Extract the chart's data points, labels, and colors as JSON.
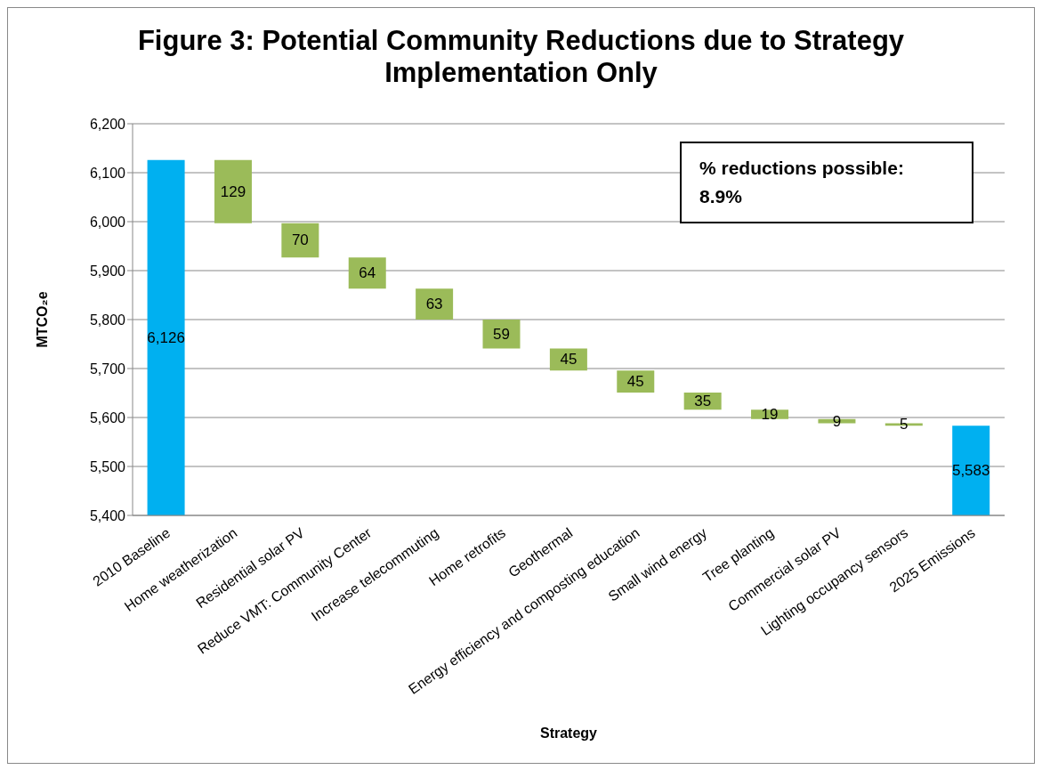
{
  "chart_data": {
    "type": "bar",
    "title": "Figure 3: Potential Community Reductions due to Strategy Implementation Only",
    "xlabel": "Strategy",
    "ylabel": "MTCO₂e",
    "categories": [
      "2010 Baseline",
      "Home weatherization",
      "Residential solar PV",
      "Reduce VMT: Community Center",
      "Increase telecommuting",
      "Home retrofits",
      "Geothermal",
      "Energy efficiency and composting education",
      "Small wind energy",
      "Tree planting",
      "Commercial solar PV",
      "Lighting occupancy sensors",
      "2025 Emissions"
    ],
    "values": [
      6126,
      129,
      70,
      64,
      63,
      59,
      45,
      45,
      35,
      19,
      9,
      5,
      5583
    ],
    "base": [
      0,
      5997,
      5927,
      5863,
      5800,
      5741,
      5696,
      5651,
      5616,
      5597,
      5588,
      5583,
      0
    ],
    "colors": [
      "#00b0f0",
      "#9bbb59",
      "#9bbb59",
      "#9bbb59",
      "#9bbb59",
      "#9bbb59",
      "#9bbb59",
      "#9bbb59",
      "#9bbb59",
      "#9bbb59",
      "#9bbb59",
      "#9bbb59",
      "#00b0f0"
    ],
    "value_labels": [
      "6,126",
      "129",
      "70",
      "64",
      "63",
      "59",
      "45",
      "45",
      "35",
      "19",
      "9",
      "5",
      "5,583"
    ],
    "ylim": [
      5400,
      6200
    ],
    "yticks": [
      {
        "value": 5400,
        "label": "5,400"
      },
      {
        "value": 5500,
        "label": "5,500"
      },
      {
        "value": 5600,
        "label": "5,600"
      },
      {
        "value": 5700,
        "label": "5,700"
      },
      {
        "value": 5800,
        "label": "5,800"
      },
      {
        "value": 5900,
        "label": "5,900"
      },
      {
        "value": 6000,
        "label": "6,000"
      },
      {
        "value": 6100,
        "label": "6,100"
      },
      {
        "value": 6200,
        "label": "6,200"
      }
    ],
    "grid": "y",
    "annotations": [
      "% reductions possible: 8.9%"
    ]
  }
}
